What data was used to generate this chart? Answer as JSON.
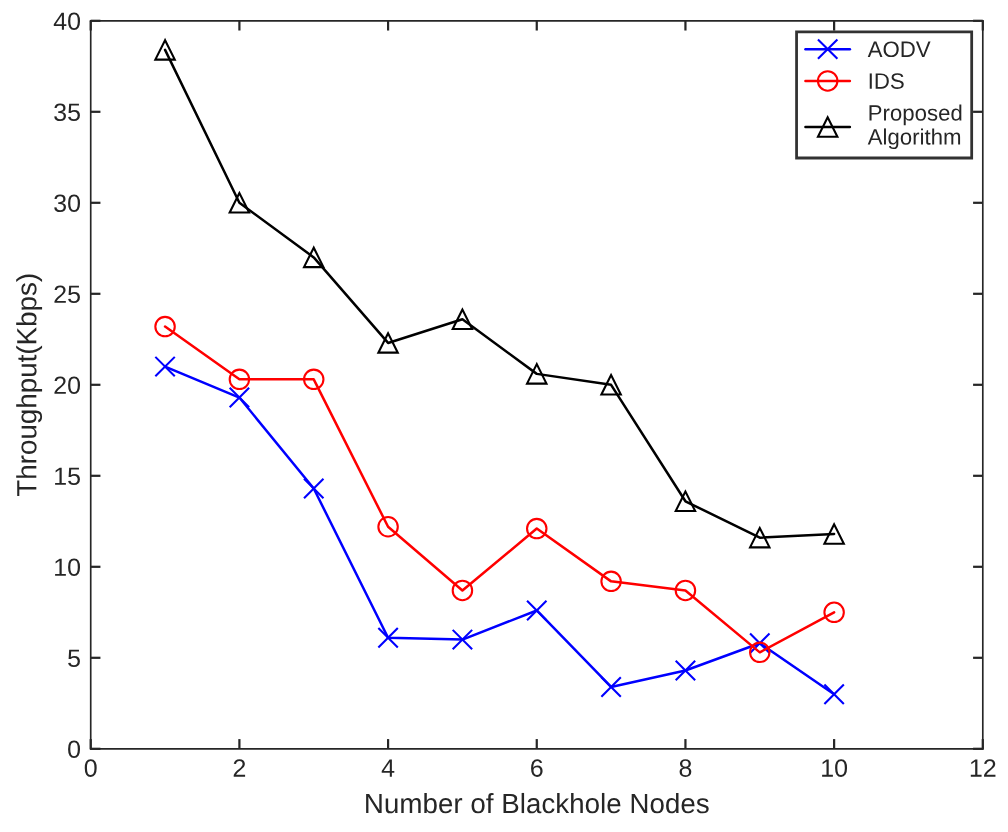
{
  "chart_data": {
    "type": "line",
    "xlabel": "Number of Blackhole Nodes",
    "ylabel": "Throughput(Kbps)",
    "x": [
      1,
      2,
      3,
      4,
      5,
      6,
      7,
      8,
      9,
      10
    ],
    "series": [
      {
        "name": "AODV",
        "color": "#0000ff",
        "marker": "cross",
        "values": [
          21.0,
          19.3,
          14.3,
          6.1,
          6.0,
          7.6,
          3.4,
          4.3,
          5.8,
          3.0
        ]
      },
      {
        "name": "IDS",
        "color": "#ff0000",
        "marker": "circle",
        "values": [
          23.2,
          20.3,
          20.3,
          12.2,
          8.7,
          12.1,
          9.2,
          8.7,
          5.3,
          7.5
        ]
      },
      {
        "name": "Proposed\nAlgorithm",
        "color": "#000000",
        "marker": "triangle",
        "values": [
          38.4,
          30.0,
          27.0,
          22.3,
          23.6,
          20.6,
          20.0,
          13.6,
          11.6,
          11.8
        ]
      }
    ],
    "xlim": [
      0,
      12
    ],
    "xticks": [
      0,
      2,
      4,
      6,
      8,
      10,
      12
    ],
    "ylim": [
      0,
      40
    ],
    "yticks": [
      0,
      5,
      10,
      15,
      20,
      25,
      30,
      35,
      40
    ],
    "legend": "top right",
    "grid": false,
    "line_style": "solid"
  }
}
